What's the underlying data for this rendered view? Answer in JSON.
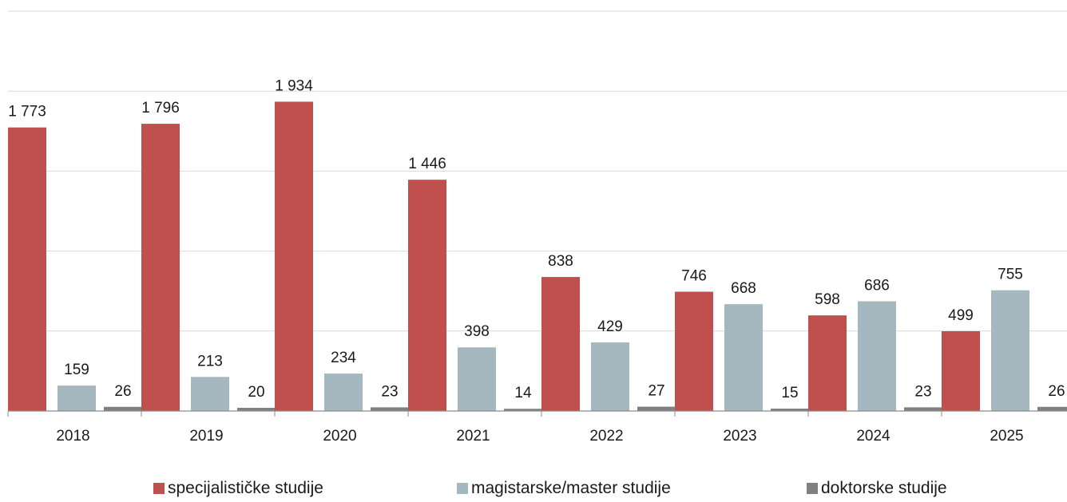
{
  "chart_data": {
    "type": "bar",
    "categories": [
      "2018",
      "2019",
      "2020",
      "2021",
      "2022",
      "2023",
      "2024",
      "2025"
    ],
    "series": [
      {
        "name": "specijalističke studije",
        "color": "#c0504d",
        "values": [
          1773,
          1796,
          1934,
          1446,
          838,
          746,
          598,
          499
        ],
        "labels": [
          "1 773",
          "1 796",
          "1 934",
          "1 446",
          "838",
          "746",
          "598",
          "499"
        ]
      },
      {
        "name": "magistarske/master studije",
        "color": "#a5b8bf",
        "values": [
          159,
          213,
          234,
          398,
          429,
          668,
          686,
          755
        ],
        "labels": [
          "159",
          "213",
          "234",
          "398",
          "429",
          "668",
          "686",
          "755"
        ]
      },
      {
        "name": "doktorske studije",
        "color": "#808080",
        "values": [
          26,
          20,
          23,
          14,
          27,
          15,
          23,
          26
        ],
        "labels": [
          "26",
          "20",
          "23",
          "14",
          "27",
          "15",
          "23",
          "26"
        ]
      }
    ],
    "ylim": [
      0,
      2500
    ],
    "y_gridlines": [
      500,
      1000,
      1500,
      2000,
      2500
    ],
    "grid": true,
    "legend_position": "bottom"
  }
}
